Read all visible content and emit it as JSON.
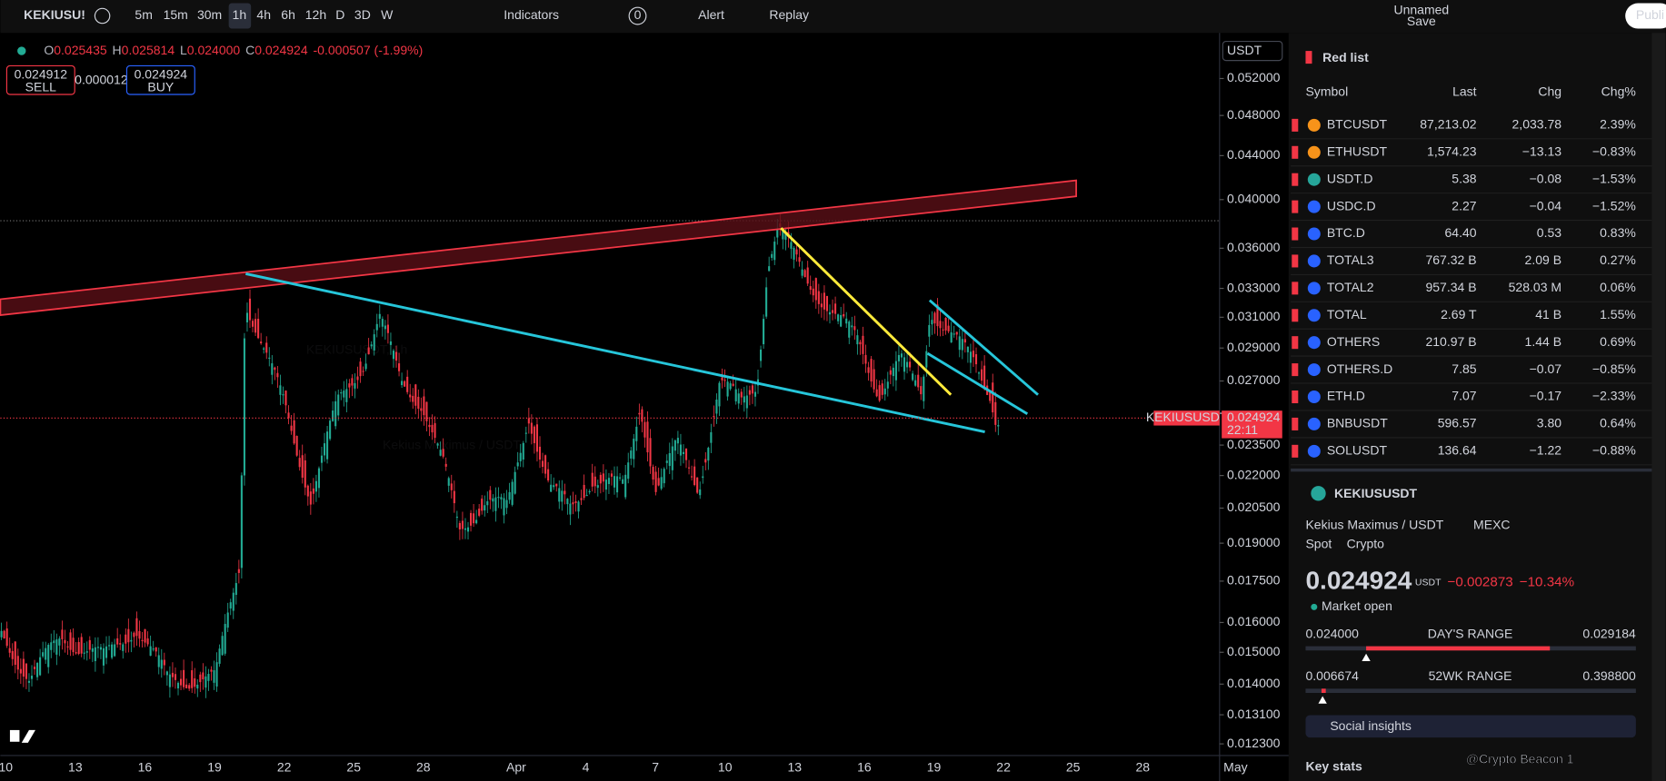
{
  "toolbar": {
    "symbol": "KEKIUSU!",
    "intervals": [
      "5m",
      "15m",
      "30m",
      "1h",
      "4h",
      "6h",
      "12h",
      "D",
      "3D",
      "W"
    ],
    "indicators": "Indicators",
    "badge": "0",
    "alert": "Alert",
    "replay": "Replay",
    "layout_name": "Unnamed",
    "save": "Save",
    "publish": "Publi"
  },
  "legend": {
    "ohlc": [
      {
        "label": "O",
        "value": "0.025435"
      },
      {
        "label": "H",
        "value": "0.025814"
      },
      {
        "label": "L",
        "value": "0.024000"
      },
      {
        "label": "C",
        "value": "0.024924"
      }
    ],
    "change": "-0.000507 (-1.99%)"
  },
  "trade": {
    "sell_price": "0.024912",
    "sell": "SELL",
    "spread": "0.000012",
    "buy_price": "0.024924",
    "buy": "BUY"
  },
  "watermark": {
    "symbol": "KEKIUSUSDT, 1h",
    "name": "Kekius Maximus / USDT"
  },
  "price_axis": {
    "currency": "USDT",
    "ticks": [
      "0.052000",
      "0.048000",
      "0.044000",
      "0.040000",
      "0.036000",
      "0.033000",
      "0.031000",
      "0.029000",
      "0.027000",
      "0.023500",
      "0.022000",
      "0.020500",
      "0.019000",
      "0.017500",
      "0.016000",
      "0.015000",
      "0.014000",
      "0.013100",
      "0.012300"
    ],
    "symbol_label": "KEKIUSUSDT",
    "current_price": "0.024924",
    "countdown": "22:11"
  },
  "time_axis": [
    "10",
    "13",
    "16",
    "19",
    "22",
    "25",
    "28",
    "Apr",
    "4",
    "7",
    "10",
    "13",
    "16",
    "19",
    "22",
    "25",
    "28",
    "May"
  ],
  "watchlist": {
    "title": "Red list",
    "columns": [
      "Symbol",
      "Last",
      "Chg",
      "Chg%"
    ],
    "rows": [
      {
        "symbol": "BTCUSDT",
        "last": "87,213.02",
        "chg": "2,033.78",
        "chg_pct": "2.39%",
        "last_color": "#ffffff"
      },
      {
        "symbol": "ETHUSDT",
        "last": "1,574.23",
        "chg": "−13.13",
        "chg_pct": "−0.83%",
        "last_color": "#ffffff"
      },
      {
        "symbol": "USDT.D",
        "last": "5.38",
        "chg": "−0.08",
        "chg_pct": "−1.53%",
        "last_color": "#ffffff"
      },
      {
        "symbol": "USDC.D",
        "last": "2.27",
        "chg": "−0.04",
        "chg_pct": "−1.52%",
        "last_color": "#22ab94"
      },
      {
        "symbol": "BTC.D",
        "last": "64.40",
        "chg": "0.53",
        "chg_pct": "0.83%",
        "last_color": "#22ab94"
      },
      {
        "symbol": "TOTAL3",
        "last": "767.32 B",
        "chg": "2.09 B",
        "chg_pct": "0.27%",
        "last_color": "#ffffff"
      },
      {
        "symbol": "TOTAL2",
        "last": "957.34 B",
        "chg": "528.03 M",
        "chg_pct": "0.06%",
        "last_color": "#f23645"
      },
      {
        "symbol": "TOTAL",
        "last": "2.69 T",
        "chg": "41 B",
        "chg_pct": "1.55%",
        "last_color": "#f23645"
      },
      {
        "symbol": "OTHERS",
        "last": "210.97 B",
        "chg": "1.44 B",
        "chg_pct": "0.69%",
        "last_color": "#f23645"
      },
      {
        "symbol": "OTHERS.D",
        "last": "7.85",
        "chg": "−0.07",
        "chg_pct": "−0.85%",
        "last_color": "#ffffff"
      },
      {
        "symbol": "ETH.D",
        "last": "7.07",
        "chg": "−0.17",
        "chg_pct": "−2.33%",
        "last_color": "#f23645"
      },
      {
        "symbol": "BNBUSDT",
        "last": "596.57",
        "chg": "3.80",
        "chg_pct": "0.64%",
        "last_color": "#ffffff"
      },
      {
        "symbol": "SOLUSDT",
        "last": "136.64",
        "chg": "−1.22",
        "chg_pct": "−0.88%",
        "last_color": "#22ab94"
      }
    ]
  },
  "details": {
    "symbol": "KEKIUSUSDT",
    "name": "Kekius Maximus / USDT",
    "exchange": "MEXC",
    "type": "Spot",
    "category": "Crypto",
    "price": "0.024924",
    "currency": "USDT",
    "change": "−0.002873",
    "change_pct": "−10.34%",
    "status": "Market open",
    "days_range": {
      "low": "0.024000",
      "label": "DAY'S RANGE",
      "high": "0.029184"
    },
    "week52_range": {
      "low": "0.006674",
      "label": "52WK RANGE",
      "high": "0.398800"
    },
    "social": "Social insights",
    "key_stats": "Key stats"
  },
  "credit": "@Crypto Beacon 1"
}
